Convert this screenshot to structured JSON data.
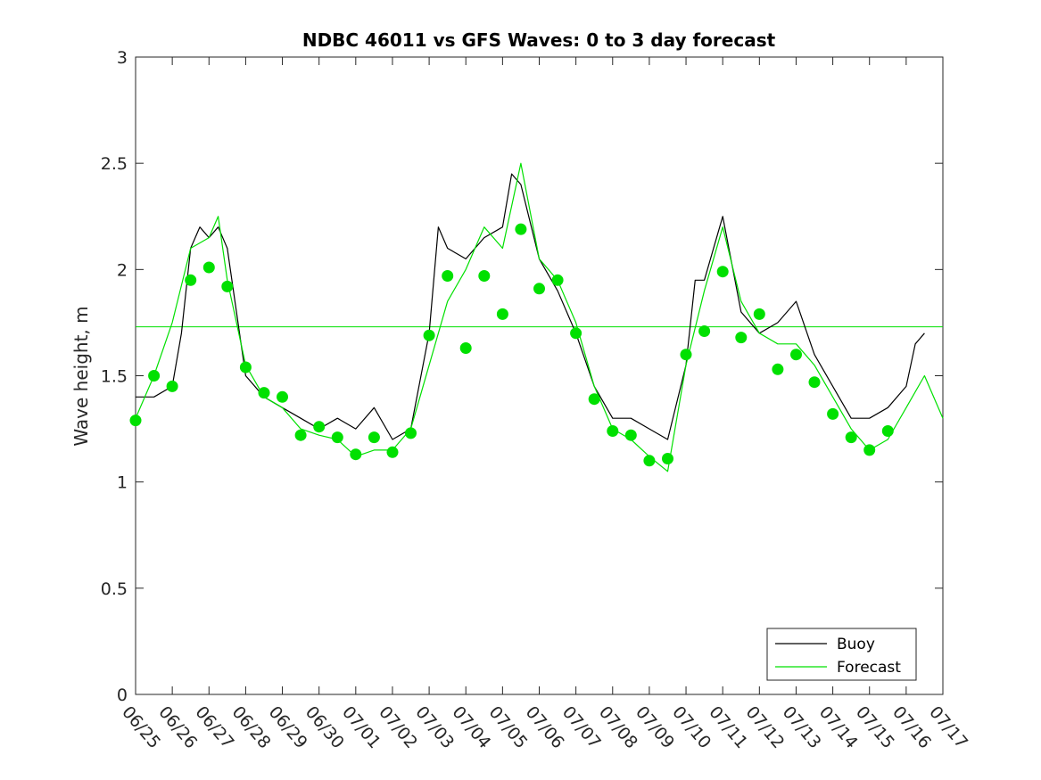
{
  "chart_data": {
    "type": "line",
    "title": "NDBC 46011 vs GFS Waves: 0 to 3 day forecast",
    "xlabel": "",
    "ylabel": "Wave height, m",
    "ylim": [
      0,
      3
    ],
    "yticks": [
      "0",
      "0.5",
      "1",
      "1.5",
      "2",
      "2.5",
      "3"
    ],
    "ytick_values": [
      0,
      0.5,
      1,
      1.5,
      2,
      2.5,
      3
    ],
    "xlim": [
      "06/25",
      "07/17"
    ],
    "xticks": [
      "06/25",
      "06/26",
      "06/27",
      "06/28",
      "06/29",
      "06/30",
      "07/01",
      "07/02",
      "07/03",
      "07/04",
      "07/05",
      "07/06",
      "07/07",
      "07/08",
      "07/09",
      "07/10",
      "07/11",
      "07/12",
      "07/13",
      "07/14",
      "07/15",
      "07/16",
      "07/17"
    ],
    "grid": false,
    "legend": {
      "placement": "bottom-right",
      "entries": [
        "Buoy",
        "Forecast"
      ]
    },
    "colors": {
      "buoy": "#000000",
      "forecast": "#00e000",
      "forecast_marker": "#00e000"
    },
    "reference_line": {
      "series": "Forecast",
      "y": 1.73
    },
    "series": [
      {
        "name": "Buoy",
        "x": [
          "06/25 00:00",
          "06/25 12:00",
          "06/26 00:00",
          "06/26 06:00",
          "06/26 12:00",
          "06/26 18:00",
          "06/27 00:00",
          "06/27 06:00",
          "06/27 12:00",
          "06/27 18:00",
          "06/28 00:00",
          "06/28 12:00",
          "06/29 00:00",
          "06/29 12:00",
          "06/30 00:00",
          "06/30 12:00",
          "07/01 00:00",
          "07/01 12:00",
          "07/02 00:00",
          "07/02 12:00",
          "07/03 00:00",
          "07/03 06:00",
          "07/03 12:00",
          "07/04 00:00",
          "07/04 12:00",
          "07/05 00:00",
          "07/05 06:00",
          "07/05 12:00",
          "07/06 00:00",
          "07/06 12:00",
          "07/07 00:00",
          "07/07 12:00",
          "07/08 00:00",
          "07/08 12:00",
          "07/09 00:00",
          "07/09 12:00",
          "07/10 00:00",
          "07/10 06:00",
          "07/10 12:00",
          "07/11 00:00",
          "07/11 12:00",
          "07/12 00:00",
          "07/12 12:00",
          "07/13 00:00",
          "07/13 12:00",
          "07/14 00:00",
          "07/14 12:00",
          "07/15 00:00",
          "07/15 12:00",
          "07/16 00:00",
          "07/16 06:00",
          "07/16 12:00"
        ],
        "values": [
          1.4,
          1.4,
          1.45,
          1.7,
          2.1,
          2.2,
          2.15,
          2.2,
          2.1,
          1.8,
          1.5,
          1.4,
          1.35,
          1.3,
          1.25,
          1.3,
          1.25,
          1.35,
          1.2,
          1.25,
          1.7,
          2.2,
          2.1,
          2.05,
          2.15,
          2.2,
          2.45,
          2.4,
          2.05,
          1.9,
          1.7,
          1.45,
          1.3,
          1.3,
          1.25,
          1.2,
          1.55,
          1.95,
          1.95,
          2.25,
          1.8,
          1.7,
          1.75,
          1.85,
          1.6,
          1.45,
          1.3,
          1.3,
          1.35,
          1.45,
          1.65,
          1.7
        ]
      },
      {
        "name": "Forecast",
        "x": [
          "06/25 00:00",
          "06/25 12:00",
          "06/26 00:00",
          "06/26 12:00",
          "06/27 00:00",
          "06/27 06:00",
          "06/27 12:00",
          "06/28 00:00",
          "06/28 12:00",
          "06/29 00:00",
          "06/29 12:00",
          "06/30 00:00",
          "06/30 12:00",
          "07/01 00:00",
          "07/01 12:00",
          "07/02 00:00",
          "07/02 12:00",
          "07/03 00:00",
          "07/03 12:00",
          "07/04 00:00",
          "07/04 12:00",
          "07/05 00:00",
          "07/05 12:00",
          "07/06 00:00",
          "07/06 12:00",
          "07/07 00:00",
          "07/07 12:00",
          "07/08 00:00",
          "07/08 12:00",
          "07/09 00:00",
          "07/09 12:00",
          "07/10 00:00",
          "07/10 12:00",
          "07/11 00:00",
          "07/11 12:00",
          "07/12 00:00",
          "07/12 12:00",
          "07/13 00:00",
          "07/13 12:00",
          "07/14 00:00",
          "07/14 12:00",
          "07/15 00:00",
          "07/15 12:00",
          "07/16 00:00",
          "07/16 12:00",
          "07/17 00:00"
        ],
        "values": [
          1.3,
          1.5,
          1.75,
          2.1,
          2.15,
          2.25,
          1.95,
          1.55,
          1.4,
          1.35,
          1.25,
          1.22,
          1.2,
          1.12,
          1.15,
          1.15,
          1.25,
          1.55,
          1.85,
          2.0,
          2.2,
          2.1,
          2.5,
          2.05,
          1.95,
          1.75,
          1.45,
          1.25,
          1.2,
          1.12,
          1.05,
          1.55,
          1.9,
          2.2,
          1.85,
          1.7,
          1.65,
          1.65,
          1.55,
          1.4,
          1.25,
          1.15,
          1.2,
          1.35,
          1.5,
          1.3
        ]
      },
      {
        "name": "",
        "marker": "circle",
        "x": [
          "06/25 00:00",
          "06/25 12:00",
          "06/26 00:00",
          "06/26 12:00",
          "06/27 00:00",
          "06/27 12:00",
          "06/28 00:00",
          "06/28 12:00",
          "06/29 00:00",
          "06/29 12:00",
          "06/30 00:00",
          "06/30 12:00",
          "07/01 00:00",
          "07/01 12:00",
          "07/02 00:00",
          "07/02 12:00",
          "07/03 00:00",
          "07/03 12:00",
          "07/04 00:00",
          "07/04 12:00",
          "07/05 00:00",
          "07/05 12:00",
          "07/06 00:00",
          "07/06 12:00",
          "07/07 00:00",
          "07/07 12:00",
          "07/08 00:00",
          "07/08 12:00",
          "07/09 00:00",
          "07/09 12:00",
          "07/10 00:00",
          "07/10 12:00",
          "07/11 00:00",
          "07/11 12:00",
          "07/12 00:00",
          "07/12 12:00",
          "07/13 00:00",
          "07/13 12:00",
          "07/14 00:00",
          "07/14 12:00",
          "07/15 00:00",
          "07/15 12:00"
        ],
        "values": [
          1.29,
          1.5,
          1.45,
          1.95,
          2.01,
          1.92,
          1.54,
          1.42,
          1.4,
          1.22,
          1.26,
          1.21,
          1.13,
          1.21,
          1.14,
          1.23,
          1.69,
          1.97,
          1.63,
          1.97,
          1.79,
          2.19,
          1.91,
          1.95,
          1.7,
          1.39,
          1.24,
          1.22,
          1.1,
          1.11,
          1.6,
          1.71,
          1.99,
          1.68,
          1.79,
          1.53,
          1.6,
          1.47,
          1.32,
          1.21,
          1.15,
          1.24
        ]
      }
    ]
  }
}
